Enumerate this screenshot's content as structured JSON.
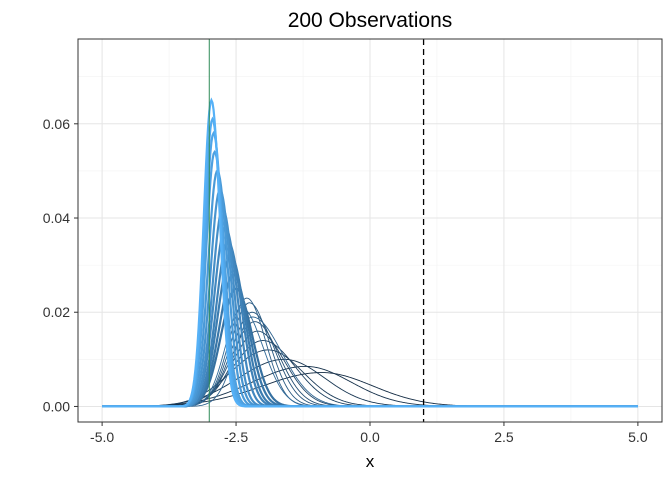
{
  "chart_data": {
    "type": "line",
    "title": "200 Observations",
    "xlabel": "x",
    "ylabel": "",
    "xlim": [
      -5.45,
      5.45
    ],
    "ylim": [
      -0.0033,
      0.078
    ],
    "x_ticks": [
      -5.0,
      -2.5,
      0.0,
      2.5,
      5.0
    ],
    "x_tick_labels": [
      "-5.0",
      "-2.5",
      "0.0",
      "2.5",
      "5.0"
    ],
    "y_ticks": [
      0.0,
      0.02,
      0.04,
      0.06
    ],
    "y_tick_labels": [
      "0.00",
      "0.02",
      "0.04",
      "0.06"
    ],
    "grid": true,
    "legend": "none",
    "reference_lines": [
      {
        "x": -3.0,
        "style": "solid",
        "color": "#2e8b57"
      },
      {
        "x": 1.0,
        "style": "dashed",
        "color": "#000000"
      }
    ],
    "curve_domain": [
      -5.0,
      5.0
    ],
    "color_dark": "#132b43",
    "color_light": "#56b1f7",
    "series": [
      {
        "mode": -0.9,
        "peak": 0.0072,
        "left_sd": 1.1,
        "right_sd": 0.95
      },
      {
        "mode": -1.2,
        "peak": 0.0085,
        "left_sd": 1.0,
        "right_sd": 0.85
      },
      {
        "mode": -1.6,
        "peak": 0.01,
        "left_sd": 0.85,
        "right_sd": 0.75
      },
      {
        "mode": -1.9,
        "peak": 0.012,
        "left_sd": 0.7,
        "right_sd": 0.65
      },
      {
        "mode": -2.0,
        "peak": 0.014,
        "left_sd": 0.55,
        "right_sd": 0.6
      },
      {
        "mode": -2.1,
        "peak": 0.016,
        "left_sd": 0.45,
        "right_sd": 0.5
      },
      {
        "mode": -2.15,
        "peak": 0.018,
        "left_sd": 0.42,
        "right_sd": 0.45
      },
      {
        "mode": -2.2,
        "peak": 0.02,
        "left_sd": 0.38,
        "right_sd": 0.42
      },
      {
        "mode": -2.25,
        "peak": 0.022,
        "left_sd": 0.35,
        "right_sd": 0.38
      },
      {
        "mode": -2.3,
        "peak": 0.023,
        "left_sd": 0.33,
        "right_sd": 0.35
      },
      {
        "mode": -2.2,
        "peak": 0.019,
        "left_sd": 0.32,
        "right_sd": 0.55
      },
      {
        "mode": -2.4,
        "peak": 0.021,
        "left_sd": 0.3,
        "right_sd": 0.4
      },
      {
        "mode": -2.5,
        "peak": 0.025,
        "left_sd": 0.28,
        "right_sd": 0.3
      },
      {
        "mode": -2.55,
        "peak": 0.028,
        "left_sd": 0.26,
        "right_sd": 0.28
      },
      {
        "mode": -2.6,
        "peak": 0.032,
        "left_sd": 0.24,
        "right_sd": 0.26
      },
      {
        "mode": -2.65,
        "peak": 0.035,
        "left_sd": 0.22,
        "right_sd": 0.25
      },
      {
        "mode": -2.7,
        "peak": 0.038,
        "left_sd": 0.21,
        "right_sd": 0.23
      },
      {
        "mode": -2.75,
        "peak": 0.042,
        "left_sd": 0.19,
        "right_sd": 0.21
      },
      {
        "mode": -2.8,
        "peak": 0.046,
        "left_sd": 0.18,
        "right_sd": 0.2
      },
      {
        "mode": -2.85,
        "peak": 0.05,
        "left_sd": 0.17,
        "right_sd": 0.19
      },
      {
        "mode": -2.9,
        "peak": 0.054,
        "left_sd": 0.16,
        "right_sd": 0.18
      },
      {
        "mode": -2.92,
        "peak": 0.058,
        "left_sd": 0.155,
        "right_sd": 0.17
      },
      {
        "mode": -2.94,
        "peak": 0.061,
        "left_sd": 0.15,
        "right_sd": 0.165
      },
      {
        "mode": -2.96,
        "peak": 0.065,
        "left_sd": 0.145,
        "right_sd": 0.16
      }
    ]
  }
}
